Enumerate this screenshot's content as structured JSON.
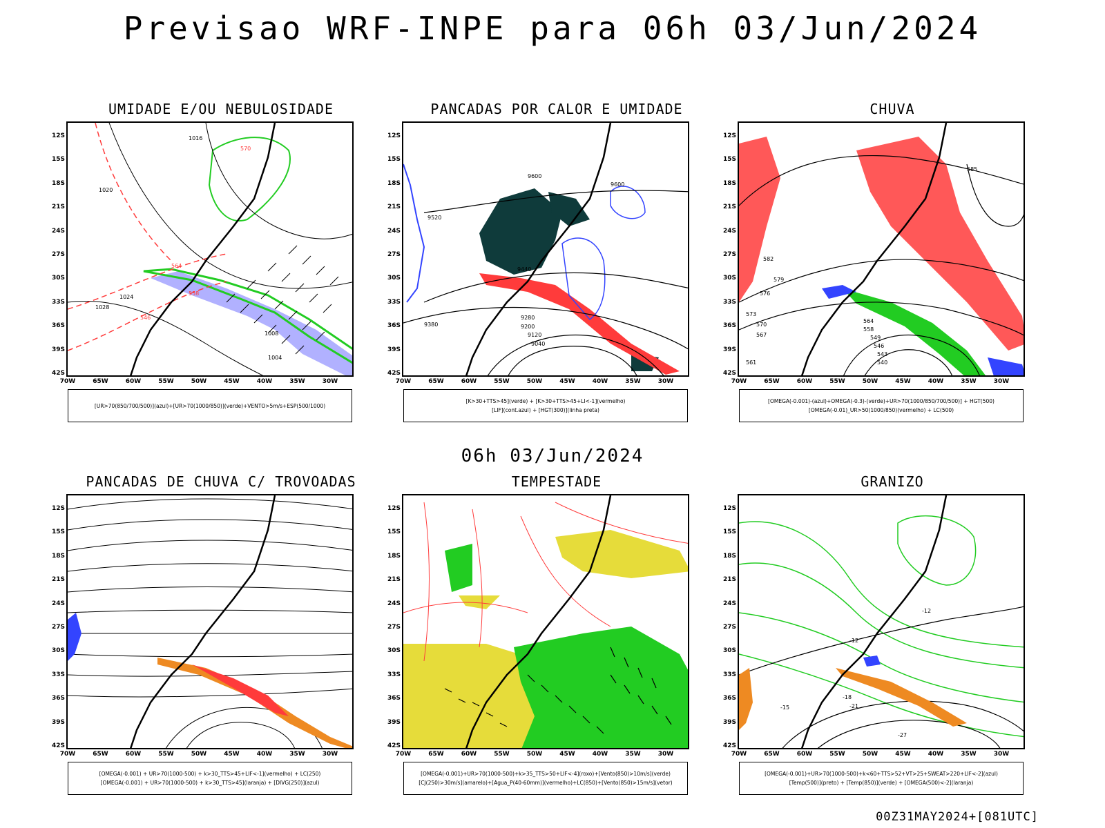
{
  "header": {
    "title": "Previsao WRF-INPE  para 06h 03/Jun/2024",
    "subtitle": "06h 03/Jun/2024",
    "footer": "00Z31MAY2024+[081UTC]"
  },
  "axes": {
    "lat_labels": [
      "12S",
      "15S",
      "18S",
      "21S",
      "24S",
      "27S",
      "30S",
      "33S",
      "36S",
      "39S",
      "42S"
    ],
    "lon_labels": [
      "70W",
      "65W",
      "60W",
      "55W",
      "50W",
      "45W",
      "40W",
      "35W",
      "30W"
    ]
  },
  "colors": {
    "green": "#22cc22",
    "red": "#ff3b3b",
    "blue": "#3344ff",
    "dark_teal": "#0f3b3b",
    "yellow": "#e6dc3a",
    "orange": "#ee8a22",
    "lavender": "#9090ff"
  },
  "panels": [
    {
      "title": "UMIDADE E/OU NEBULOSIDADE",
      "legend": [
        "[UR>70(850/700/500)](azul)+[UR>70(1000/850)](verde)+VENTO>5m/s+ESP(500/1000)"
      ],
      "contour_labels": [
        "1016",
        "1020",
        "1024",
        "1028",
        "1008",
        "1004",
        "570",
        "564",
        "558",
        "546"
      ]
    },
    {
      "title": "PANCADAS POR CALOR E UMIDADE",
      "legend": [
        "[K>30+TTS>45](verde) + [K>30+TTS>45+LI<-1](vermelho)",
        "[LIF](cont.azul) + [HGT(300)](linha preta)"
      ],
      "contour_labels": [
        "9600",
        "9520",
        "9440",
        "9380",
        "9280",
        "9200",
        "9120",
        "9040",
        "9600"
      ]
    },
    {
      "title": "CHUVA",
      "legend": [
        "[OMEGA(-0.001)-(azul)+OMEGA(-0.3)-(verde)+UR>70(1000/850/700/500)] + HGT(500)",
        "[OMEGA(-0.01)_UR>50(1000/850)(vermelho) + LC(500)"
      ],
      "contour_labels": [
        "582",
        "579",
        "576",
        "573",
        "570",
        "567",
        "564",
        "561",
        "558",
        "549",
        "546",
        "543",
        "540",
        "585"
      ]
    },
    {
      "title": "PANCADAS DE CHUVA C/ TROVOADAS",
      "legend": [
        "[OMEGA(-0.001) + UR>70(1000-500) + k>30_TTS>45+LIF<-1](vermelho) + LC(250)",
        "[OMEGA(-0.001) + UR>70(1000-500) + k>30_TTS>45](laranja) + [DIVG(250)](azul)"
      ],
      "contour_labels": []
    },
    {
      "title": "TEMPESTADE",
      "legend": [
        "[OMEGA(-0.001)+UR>70(1000-500)+k>35_TTS>50+LIF<-4](roxo)+[Vento(850)>10m/s](verde)",
        "[CJ(250)>30m/s](amarelo)+[Agua_P(40-60mm)](vermelho)+LC(850)+[Vento(850)>15m/s](vetor)"
      ],
      "contour_labels": []
    },
    {
      "title": "GRANIZO",
      "legend": [
        "[OMEGA(-0.001)+UR>70(1000-500)+k<60+TTS>52+VT>25+SWEAT>220+LIF<-2](azul)",
        "[Temp(500)](preto) + [Temp(850)](verde) + [OMEGA(500)<-2](laranja)"
      ],
      "contour_labels": [
        "-12",
        "-12",
        "-15",
        "-18",
        "-21",
        "-27"
      ]
    }
  ]
}
